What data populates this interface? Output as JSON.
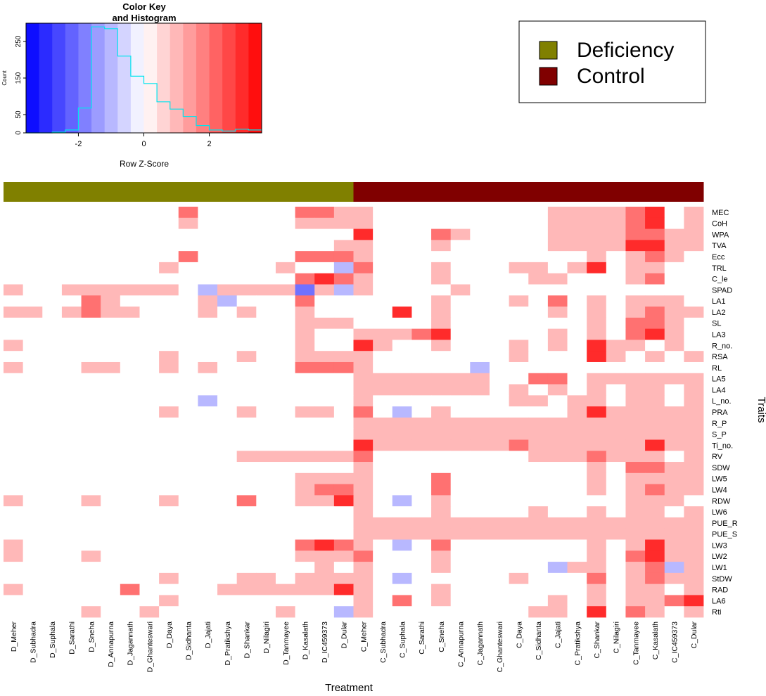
{
  "chart_data": {
    "type": "heatmap",
    "xlabel": "Treatment",
    "ylabel": "Traits",
    "scale": "Row Z-Score",
    "columns": [
      "D_Meher",
      "D_Subhadra",
      "D_Suphala",
      "D_Sarathi",
      "D_Sneha",
      "D_Annapurna",
      "D_Jagannath",
      "D_Ghanteswari",
      "D_Daya",
      "D_Sidhanta",
      "D_Jajati",
      "D_Pratikshya",
      "D_Shankar",
      "D_Nilagiri",
      "D_Tanmayee",
      "D_Kasalath",
      "D_IC459373",
      "D_Dular",
      "C_Meher",
      "C_Subhadra",
      "C_Suphala",
      "C_Sarathi",
      "C_Sneha",
      "C_Annapurna",
      "C_Jagannath",
      "C_Ghanteswari",
      "C_Daya",
      "C_Sidhanta",
      "C_Jajati",
      "C_Pratikshya",
      "C_Shankar",
      "C_Nilagiri",
      "C_Tanmayee",
      "C_Kasalath",
      "C_IC459373",
      "C_Dular"
    ],
    "rows": [
      "MEC",
      "CoH",
      "WPA",
      "TVA",
      "Ecc",
      "TRL",
      "C_le",
      "SPAD",
      "LA1",
      "LA2",
      "SL",
      "LA3",
      "R_no.",
      "RSA",
      "RL",
      "LA5",
      "LA4",
      "L_no.",
      "PRA",
      "R_P",
      "S_P",
      "Ti_no.",
      "RV",
      "SDW",
      "LW5",
      "LW4",
      "RDW",
      "LW6",
      "PUE_R",
      "PUE_S",
      "LW3",
      "LW2",
      "LW1",
      "StDW",
      "RAD",
      "LA6",
      "Rti"
    ],
    "column_groups": [
      {
        "name": "Deficiency",
        "color": "#808000",
        "start": 0,
        "count": 18
      },
      {
        "name": "Control",
        "color": "#800000",
        "start": 18,
        "count": 18
      }
    ],
    "color_key": {
      "title_line1": "Color Key",
      "title_line2": "and Histogram",
      "xlabel": "Row Z-Score",
      "ylabel": "Count",
      "x_range": [
        -3.6,
        3.6
      ],
      "x_ticks": [
        -2,
        0,
        2
      ],
      "y_range": [
        0,
        300
      ],
      "y_ticks": [
        0,
        50,
        150,
        250
      ],
      "breaks": [
        -3.6,
        -3.2,
        -2.8,
        -2.4,
        -2.0,
        -1.6,
        -1.2,
        -0.8,
        -0.4,
        0.0,
        0.4,
        0.8,
        1.2,
        1.6,
        2.0,
        2.4,
        2.8,
        3.2,
        3.6
      ],
      "histogram": [
        0,
        0,
        2,
        8,
        68,
        290,
        285,
        210,
        155,
        135,
        85,
        65,
        45,
        20,
        8,
        5,
        10,
        8
      ]
    },
    "values": [
      [
        0,
        0,
        0,
        0,
        0,
        0,
        0,
        0,
        0,
        2,
        0,
        0,
        0,
        0,
        0,
        2,
        2,
        1,
        1,
        0,
        0,
        0,
        0,
        0,
        0,
        0,
        0,
        0,
        1,
        1,
        1,
        1,
        2,
        3,
        0,
        1
      ],
      [
        0,
        0,
        0,
        0,
        0,
        0,
        0,
        0,
        0,
        1,
        0,
        0,
        0,
        0,
        0,
        1,
        1,
        1,
        1,
        0,
        0,
        0,
        0,
        0,
        0,
        0,
        0,
        0,
        1,
        1,
        1,
        1,
        2,
        3,
        0,
        1
      ],
      [
        0,
        0,
        0,
        0,
        0,
        0,
        0,
        0,
        0,
        0,
        0,
        0,
        0,
        0,
        0,
        0,
        0,
        0,
        3,
        0,
        0,
        0,
        2,
        1,
        0,
        0,
        0,
        0,
        1,
        1,
        1,
        1,
        2,
        2,
        1,
        1
      ],
      [
        0,
        0,
        0,
        0,
        0,
        0,
        0,
        0,
        0,
        0,
        0,
        0,
        0,
        0,
        0,
        0,
        0,
        1,
        1,
        0,
        0,
        0,
        1,
        0,
        0,
        0,
        0,
        0,
        1,
        1,
        1,
        1,
        3,
        3,
        1,
        1
      ],
      [
        0,
        0,
        0,
        0,
        0,
        0,
        0,
        0,
        0,
        2,
        0,
        0,
        0,
        0,
        0,
        2,
        2,
        2,
        1,
        0,
        0,
        0,
        0,
        0,
        0,
        0,
        0,
        0,
        0,
        0,
        1,
        0,
        1,
        2,
        1,
        0
      ],
      [
        0,
        0,
        0,
        0,
        0,
        0,
        0,
        0,
        1,
        0,
        0,
        0,
        0,
        0,
        1,
        0,
        0,
        -1,
        2,
        0,
        0,
        0,
        1,
        0,
        0,
        0,
        1,
        1,
        0,
        1,
        3,
        0,
        1,
        1,
        0,
        0
      ],
      [
        0,
        0,
        0,
        0,
        0,
        0,
        0,
        0,
        0,
        0,
        0,
        0,
        0,
        0,
        0,
        2,
        3,
        2,
        1,
        0,
        0,
        0,
        1,
        0,
        0,
        0,
        0,
        1,
        1,
        0,
        0,
        0,
        1,
        2,
        0,
        0
      ],
      [
        1,
        0,
        0,
        1,
        1,
        1,
        1,
        1,
        1,
        0,
        -1,
        1,
        1,
        1,
        1,
        -2,
        1,
        -1,
        1,
        0,
        0,
        0,
        0,
        1,
        0,
        0,
        0,
        0,
        0,
        0,
        0,
        0,
        0,
        0,
        0,
        0
      ],
      [
        0,
        0,
        0,
        0,
        2,
        1,
        0,
        0,
        0,
        0,
        1,
        -1,
        0,
        0,
        0,
        2,
        0,
        0,
        0,
        0,
        0,
        0,
        1,
        0,
        0,
        0,
        1,
        0,
        2,
        0,
        1,
        0,
        1,
        1,
        1,
        0
      ],
      [
        1,
        1,
        0,
        1,
        2,
        1,
        1,
        0,
        0,
        0,
        1,
        0,
        1,
        0,
        0,
        1,
        0,
        0,
        0,
        0,
        3,
        0,
        1,
        0,
        0,
        0,
        0,
        0,
        1,
        0,
        1,
        0,
        1,
        2,
        1,
        1
      ],
      [
        0,
        0,
        0,
        0,
        0,
        0,
        0,
        0,
        0,
        0,
        0,
        0,
        0,
        0,
        0,
        1,
        1,
        1,
        0,
        0,
        0,
        0,
        1,
        0,
        0,
        0,
        0,
        0,
        0,
        0,
        1,
        0,
        2,
        2,
        1,
        0
      ],
      [
        0,
        0,
        0,
        0,
        0,
        0,
        0,
        0,
        0,
        0,
        0,
        0,
        0,
        0,
        0,
        1,
        0,
        0,
        1,
        1,
        1,
        2,
        3,
        0,
        0,
        0,
        0,
        0,
        1,
        0,
        1,
        0,
        2,
        3,
        1,
        0
      ],
      [
        1,
        0,
        0,
        0,
        0,
        0,
        0,
        0,
        0,
        0,
        0,
        0,
        0,
        0,
        0,
        1,
        0,
        0,
        3,
        1,
        0,
        0,
        1,
        0,
        0,
        0,
        1,
        0,
        1,
        0,
        3,
        1,
        1,
        0,
        1,
        0
      ],
      [
        0,
        0,
        0,
        0,
        0,
        0,
        0,
        0,
        1,
        0,
        0,
        0,
        1,
        0,
        0,
        1,
        1,
        1,
        1,
        0,
        0,
        0,
        0,
        0,
        0,
        0,
        1,
        0,
        0,
        0,
        3,
        1,
        0,
        1,
        0,
        1
      ],
      [
        1,
        0,
        0,
        0,
        1,
        1,
        0,
        0,
        1,
        0,
        1,
        0,
        0,
        0,
        0,
        2,
        2,
        2,
        1,
        0,
        0,
        0,
        0,
        0,
        -1,
        0,
        0,
        0,
        0,
        0,
        0,
        0,
        0,
        0,
        0,
        0
      ],
      [
        0,
        0,
        0,
        0,
        0,
        0,
        0,
        0,
        0,
        0,
        0,
        0,
        0,
        0,
        0,
        0,
        0,
        0,
        1,
        1,
        1,
        1,
        1,
        1,
        1,
        0,
        0,
        2,
        2,
        0,
        1,
        1,
        1,
        1,
        1,
        1
      ],
      [
        0,
        0,
        0,
        0,
        0,
        0,
        0,
        0,
        0,
        0,
        0,
        0,
        0,
        0,
        0,
        0,
        0,
        0,
        1,
        1,
        1,
        1,
        1,
        1,
        1,
        0,
        1,
        0,
        1,
        0,
        1,
        0,
        1,
        1,
        0,
        1
      ],
      [
        0,
        0,
        0,
        0,
        0,
        0,
        0,
        0,
        0,
        0,
        -1,
        0,
        0,
        0,
        0,
        0,
        0,
        0,
        1,
        0,
        0,
        0,
        0,
        0,
        0,
        0,
        1,
        1,
        0,
        1,
        1,
        0,
        1,
        1,
        0,
        1
      ],
      [
        0,
        0,
        0,
        0,
        0,
        0,
        0,
        0,
        1,
        0,
        0,
        0,
        1,
        0,
        0,
        1,
        1,
        0,
        2,
        0,
        -1,
        0,
        1,
        0,
        0,
        0,
        0,
        0,
        0,
        1,
        3,
        1,
        1,
        1,
        1,
        1
      ],
      [
        0,
        0,
        0,
        0,
        0,
        0,
        0,
        0,
        0,
        0,
        0,
        0,
        0,
        0,
        0,
        0,
        0,
        0,
        1,
        1,
        1,
        1,
        1,
        1,
        1,
        1,
        1,
        1,
        1,
        1,
        1,
        1,
        1,
        1,
        1,
        1
      ],
      [
        0,
        0,
        0,
        0,
        0,
        0,
        0,
        0,
        0,
        0,
        0,
        0,
        0,
        0,
        0,
        0,
        0,
        0,
        1,
        1,
        1,
        1,
        1,
        1,
        1,
        1,
        1,
        1,
        1,
        1,
        1,
        1,
        1,
        1,
        1,
        1
      ],
      [
        0,
        0,
        0,
        0,
        0,
        0,
        0,
        0,
        0,
        0,
        0,
        0,
        0,
        0,
        0,
        0,
        0,
        0,
        3,
        1,
        1,
        1,
        1,
        1,
        1,
        1,
        2,
        1,
        1,
        1,
        1,
        1,
        1,
        3,
        1,
        1
      ],
      [
        0,
        0,
        0,
        0,
        0,
        0,
        0,
        0,
        0,
        0,
        0,
        0,
        1,
        1,
        1,
        1,
        1,
        1,
        2,
        0,
        0,
        0,
        0,
        0,
        0,
        0,
        0,
        1,
        1,
        1,
        2,
        1,
        1,
        1,
        0,
        1
      ],
      [
        0,
        0,
        0,
        0,
        0,
        0,
        0,
        0,
        0,
        0,
        0,
        0,
        0,
        0,
        0,
        0,
        0,
        0,
        1,
        0,
        0,
        0,
        0,
        0,
        0,
        0,
        0,
        0,
        0,
        0,
        1,
        0,
        2,
        2,
        1,
        1
      ],
      [
        0,
        0,
        0,
        0,
        0,
        0,
        0,
        0,
        0,
        0,
        0,
        0,
        0,
        0,
        0,
        1,
        1,
        1,
        1,
        0,
        0,
        0,
        2,
        0,
        0,
        0,
        0,
        0,
        0,
        0,
        1,
        0,
        1,
        1,
        1,
        1
      ],
      [
        0,
        0,
        0,
        0,
        0,
        0,
        0,
        0,
        0,
        0,
        0,
        0,
        0,
        0,
        0,
        1,
        2,
        2,
        1,
        0,
        0,
        0,
        2,
        0,
        0,
        0,
        0,
        0,
        0,
        0,
        1,
        0,
        1,
        2,
        1,
        1
      ],
      [
        1,
        0,
        0,
        0,
        1,
        0,
        0,
        0,
        1,
        0,
        0,
        0,
        2,
        0,
        0,
        1,
        1,
        3,
        1,
        0,
        -1,
        0,
        1,
        0,
        0,
        0,
        0,
        0,
        0,
        0,
        0,
        0,
        1,
        1,
        1,
        0
      ],
      [
        0,
        0,
        0,
        0,
        0,
        0,
        0,
        0,
        0,
        0,
        0,
        0,
        0,
        0,
        0,
        0,
        0,
        0,
        1,
        0,
        0,
        0,
        1,
        0,
        0,
        0,
        0,
        1,
        0,
        0,
        1,
        0,
        1,
        1,
        0,
        1
      ],
      [
        0,
        0,
        0,
        0,
        0,
        0,
        0,
        0,
        0,
        0,
        0,
        0,
        0,
        0,
        0,
        0,
        0,
        0,
        1,
        1,
        1,
        1,
        1,
        1,
        1,
        1,
        1,
        1,
        1,
        1,
        1,
        1,
        1,
        1,
        1,
        1
      ],
      [
        0,
        0,
        0,
        0,
        0,
        0,
        0,
        0,
        0,
        0,
        0,
        0,
        0,
        0,
        0,
        0,
        0,
        0,
        1,
        1,
        1,
        1,
        1,
        1,
        1,
        1,
        1,
        1,
        1,
        1,
        1,
        1,
        1,
        1,
        1,
        1
      ],
      [
        1,
        0,
        0,
        0,
        0,
        0,
        0,
        0,
        0,
        0,
        0,
        0,
        0,
        0,
        0,
        2,
        3,
        2,
        1,
        0,
        -1,
        0,
        2,
        0,
        0,
        0,
        0,
        0,
        0,
        0,
        1,
        0,
        1,
        3,
        1,
        1
      ],
      [
        1,
        0,
        0,
        0,
        1,
        0,
        0,
        0,
        0,
        0,
        0,
        0,
        0,
        0,
        0,
        1,
        1,
        1,
        2,
        0,
        0,
        0,
        1,
        0,
        0,
        0,
        0,
        0,
        0,
        0,
        1,
        0,
        2,
        3,
        1,
        1
      ],
      [
        0,
        0,
        0,
        0,
        0,
        0,
        0,
        0,
        0,
        0,
        0,
        0,
        0,
        0,
        0,
        0,
        1,
        0,
        1,
        0,
        0,
        0,
        1,
        0,
        0,
        0,
        0,
        0,
        -1,
        1,
        1,
        0,
        1,
        2,
        -1,
        1
      ],
      [
        0,
        0,
        0,
        0,
        0,
        0,
        0,
        0,
        1,
        0,
        0,
        0,
        1,
        1,
        0,
        1,
        1,
        1,
        1,
        0,
        -1,
        0,
        0,
        0,
        0,
        0,
        1,
        0,
        0,
        0,
        2,
        0,
        1,
        2,
        1,
        1
      ],
      [
        1,
        0,
        0,
        0,
        0,
        0,
        2,
        0,
        0,
        0,
        0,
        1,
        1,
        1,
        1,
        1,
        1,
        3,
        1,
        0,
        0,
        0,
        1,
        0,
        0,
        0,
        0,
        0,
        0,
        0,
        1,
        0,
        1,
        1,
        0,
        1
      ],
      [
        0,
        0,
        0,
        0,
        0,
        0,
        0,
        0,
        1,
        0,
        0,
        0,
        0,
        0,
        0,
        0,
        0,
        0,
        1,
        0,
        2,
        0,
        1,
        0,
        0,
        0,
        0,
        0,
        1,
        0,
        1,
        0,
        1,
        1,
        2,
        3
      ],
      [
        0,
        0,
        0,
        0,
        1,
        0,
        0,
        1,
        0,
        0,
        0,
        0,
        0,
        0,
        1,
        0,
        0,
        -1,
        1,
        0,
        0,
        0,
        0,
        0,
        0,
        0,
        0,
        1,
        1,
        0,
        3,
        0,
        2,
        1,
        0,
        1
      ]
    ]
  },
  "legend": {
    "entries": [
      {
        "label": "Deficiency",
        "color": "#808000"
      },
      {
        "label": "Control",
        "color": "#800000"
      }
    ]
  }
}
